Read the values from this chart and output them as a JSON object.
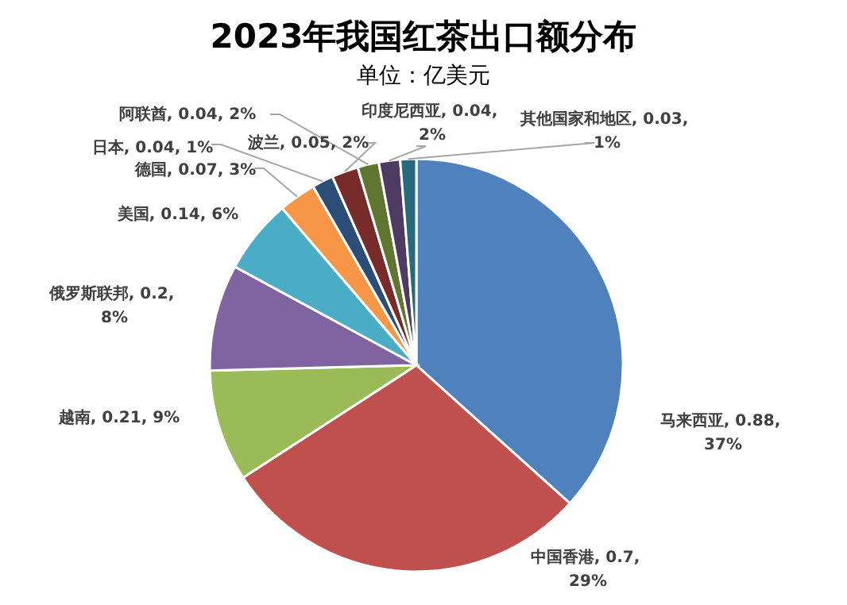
{
  "chart_data": {
    "type": "pie",
    "title": "2023年我国红茶出口额分布",
    "subtitle": "单位：亿美元",
    "categories": [
      "马来西亚",
      "中国香港",
      "越南",
      "俄罗斯联邦",
      "美国",
      "德国",
      "日本",
      "波兰",
      "阿联酋",
      "印度尼西亚",
      "其他国家和地区"
    ],
    "values": [
      0.88,
      0.7,
      0.21,
      0.2,
      0.14,
      0.07,
      0.04,
      0.05,
      0.04,
      0.04,
      0.03
    ],
    "value_labels": [
      "0.88, 37%",
      "0.7, 29%",
      "0.21, 9%",
      "0.2, 8%",
      "0.14, 6%",
      "0.07, 3%",
      "0.04, 1%",
      "0.05, 2%",
      "0.04, 2%",
      "0.04, 2%",
      "0.03, 1%"
    ],
    "colors": [
      "#4f81bd",
      "#c0504d",
      "#9bbb59",
      "#8064a2",
      "#4bacc6",
      "#f79646",
      "#2c4d75",
      "#772c2a",
      "#5f7530",
      "#4d3b62",
      "#276a7c"
    ]
  }
}
